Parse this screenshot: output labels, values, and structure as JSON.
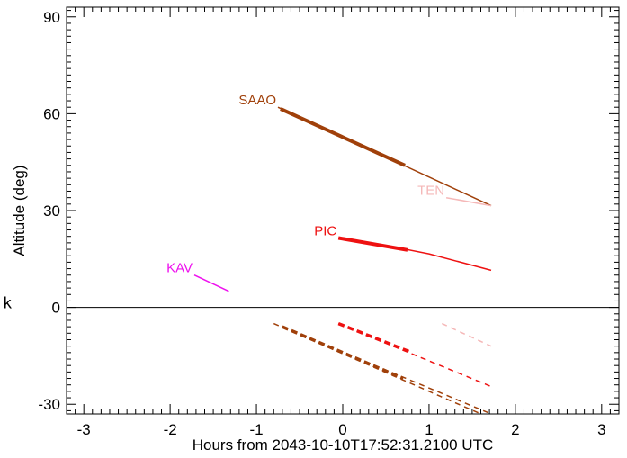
{
  "chart_data": {
    "type": "line",
    "title": "",
    "xlabel": "Hours from 2043-10-10T17:52:31.2100 UTC",
    "ylabel": "Altitude (deg)",
    "xlim": [
      -3.2,
      3.2
    ],
    "ylim": [
      -33,
      93
    ],
    "xticks": [
      -3,
      -2,
      -1,
      0,
      1,
      2,
      3
    ],
    "yticks": [
      -30,
      0,
      30,
      60,
      90
    ],
    "zero_line": 0,
    "side_label": "k",
    "series": [
      {
        "name": "SAAO",
        "color": "#a0400a",
        "style": "solid",
        "width": 1.5,
        "x": [
          -0.75,
          1.72
        ],
        "y": [
          62,
          31.5
        ],
        "label_anchor": [
          -0.75,
          62
        ]
      },
      {
        "name": "",
        "color": "#a0400a",
        "style": "solid",
        "width": 4,
        "x": [
          -0.72,
          0.72
        ],
        "y": [
          61.5,
          44
        ]
      },
      {
        "name": "TEN",
        "color": "#f5b8b8",
        "style": "solid",
        "width": 1.5,
        "x": [
          1.2,
          1.72
        ],
        "y": [
          34,
          31.5
        ],
        "label_anchor": [
          1.2,
          34
        ]
      },
      {
        "name": "PIC",
        "color": "#ee1111",
        "style": "solid",
        "width": 1.5,
        "x": [
          -0.05,
          0.5,
          1.0,
          1.72
        ],
        "y": [
          21.5,
          19.2,
          16.6,
          11.5
        ],
        "label_anchor": [
          -0.05,
          21.5
        ]
      },
      {
        "name": "",
        "color": "#ee1111",
        "style": "solid",
        "width": 4,
        "x": [
          -0.05,
          0.75
        ],
        "y": [
          21.5,
          17.8
        ]
      },
      {
        "name": "KAV",
        "color": "#ee11ee",
        "style": "solid",
        "width": 1.5,
        "x": [
          -1.72,
          -1.32
        ],
        "y": [
          10,
          5
        ],
        "label_anchor": [
          -1.72,
          10
        ]
      },
      {
        "name": "",
        "color": "#a0400a",
        "style": "dashed",
        "width": 1.5,
        "x": [
          -0.8,
          1.6
        ],
        "y": [
          -5,
          -33
        ]
      },
      {
        "name": "",
        "color": "#a0400a",
        "style": "dashed",
        "width": 1.5,
        "x": [
          -0.7,
          1.72
        ],
        "y": [
          -6,
          -33
        ]
      },
      {
        "name": "",
        "color": "#a0400a",
        "style": "dashed",
        "width": 3.5,
        "x": [
          -0.7,
          0.7
        ],
        "y": [
          -6,
          -22
        ]
      },
      {
        "name": "",
        "color": "#ee1111",
        "style": "dashed",
        "width": 1.5,
        "x": [
          -0.05,
          1.72
        ],
        "y": [
          -5,
          -24.5
        ]
      },
      {
        "name": "",
        "color": "#ee1111",
        "style": "dashed",
        "width": 3.5,
        "x": [
          -0.05,
          0.8
        ],
        "y": [
          -5,
          -14
        ]
      },
      {
        "name": "",
        "color": "#f5b8b8",
        "style": "dashed",
        "width": 1.5,
        "x": [
          1.15,
          1.72
        ],
        "y": [
          -5,
          -12
        ]
      }
    ]
  }
}
